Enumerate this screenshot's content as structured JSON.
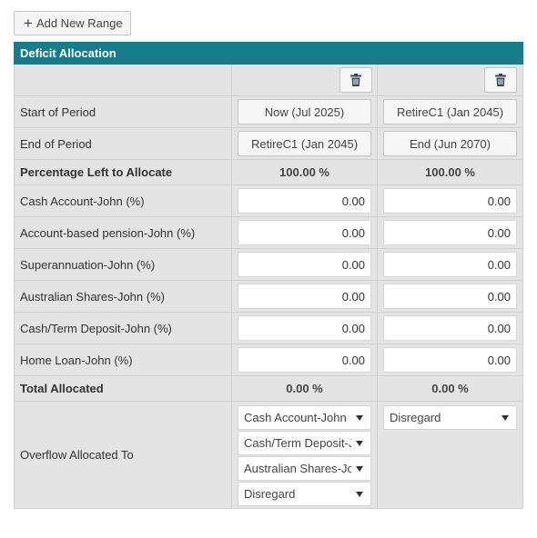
{
  "add_button": {
    "label": "Add New Range"
  },
  "panel": {
    "title": "Deficit Allocation"
  },
  "rows": {
    "start": {
      "label": "Start of Period",
      "col1": "Now (Jul 2025)",
      "col2": "RetireC1 (Jan 2045)"
    },
    "end": {
      "label": "End of Period",
      "col1": "RetireC1 (Jan 2045)",
      "col2": "End (Jun 2070)"
    },
    "pct_left": {
      "label": "Percentage Left to Allocate",
      "col1": "100.00 %",
      "col2": "100.00 %"
    },
    "inputs": [
      {
        "label": "Cash Account-John (%)",
        "col1": "0.00",
        "col2": "0.00"
      },
      {
        "label": "Account-based pension-John (%)",
        "col1": "0.00",
        "col2": "0.00"
      },
      {
        "label": "Superannuation-John (%)",
        "col1": "0.00",
        "col2": "0.00"
      },
      {
        "label": "Australian Shares-John (%)",
        "col1": "0.00",
        "col2": "0.00"
      },
      {
        "label": "Cash/Term Deposit-John (%)",
        "col1": "0.00",
        "col2": "0.00"
      },
      {
        "label": "Home Loan-John (%)",
        "col1": "0.00",
        "col2": "0.00"
      }
    ],
    "total": {
      "label": "Total Allocated",
      "col1": "0.00 %",
      "col2": "0.00 %"
    },
    "overflow": {
      "label": "Overflow Allocated To",
      "col1": [
        "Cash Account-John",
        "Cash/Term Deposit-John",
        "Australian Shares-John",
        "Disregard"
      ],
      "col2": [
        "Disregard"
      ]
    }
  },
  "icons": {
    "delete": "trash-icon",
    "add": "plus-icon",
    "dropdown": "caret-down-icon"
  },
  "colors": {
    "header": "#157d8c",
    "panel_bg": "#e4e4e4"
  }
}
